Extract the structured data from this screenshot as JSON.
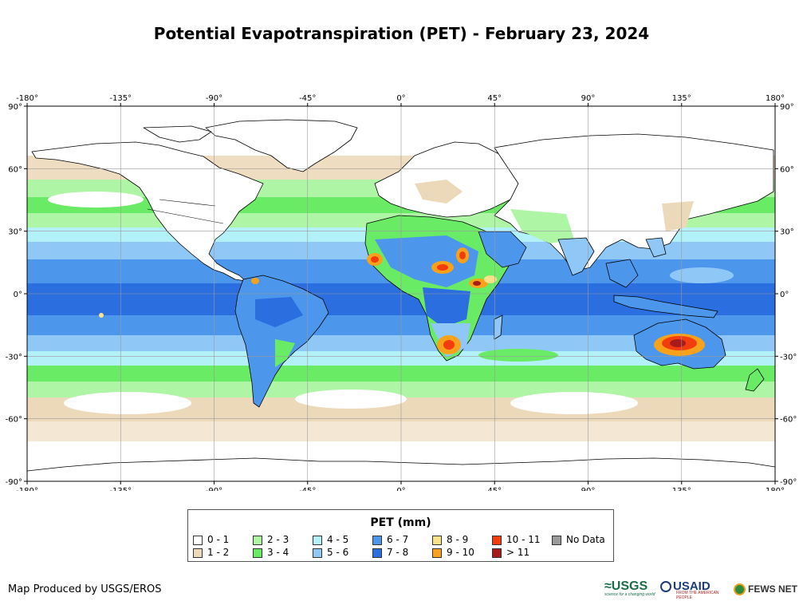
{
  "title": "Potential Evapotranspiration (PET) - February 23, 2024",
  "map": {
    "x_ticks": [
      "-180°",
      "-135°",
      "-90°",
      "-45°",
      "0°",
      "45°",
      "90°",
      "135°",
      "180°"
    ],
    "x_tick_values": [
      -180,
      -135,
      -90,
      -45,
      0,
      45,
      90,
      135,
      180
    ],
    "y_ticks": [
      "90°",
      "60°",
      "30°",
      "0°",
      "-30°",
      "-60°",
      "-90°"
    ],
    "y_tick_values": [
      90,
      60,
      30,
      0,
      -30,
      -60,
      -90
    ],
    "lon_range": [
      -180,
      180
    ],
    "lat_range": [
      -90,
      90
    ]
  },
  "legend": {
    "title": "PET (mm)",
    "items": [
      {
        "label": "0 - 1",
        "color": "#ffffff"
      },
      {
        "label": "1 - 2",
        "color": "#ecd9b9"
      },
      {
        "label": "2 - 3",
        "color": "#aff5a6"
      },
      {
        "label": "3 - 4",
        "color": "#6aeb66"
      },
      {
        "label": "4 - 5",
        "color": "#b3f1f8"
      },
      {
        "label": "5 - 6",
        "color": "#8fc8f6"
      },
      {
        "label": "6 - 7",
        "color": "#4c97eb"
      },
      {
        "label": "7 - 8",
        "color": "#2a6ee0"
      },
      {
        "label": "8 - 9",
        "color": "#fce18a"
      },
      {
        "label": "9 - 10",
        "color": "#f8a21c"
      },
      {
        "label": "10 - 11",
        "color": "#f43d0f"
      },
      {
        "label": "> 11",
        "color": "#a81b1b"
      },
      {
        "label": "No Data",
        "color": "#9a9a9a"
      }
    ]
  },
  "credit": "Map Produced by USGS/EROS",
  "logos": {
    "usgs": "≈USGS",
    "usgs_tagline": "science for a changing world",
    "usaid": "USAID",
    "usaid_tagline": "FROM THE AMERICAN PEOPLE",
    "fews": "FEWS NET"
  }
}
